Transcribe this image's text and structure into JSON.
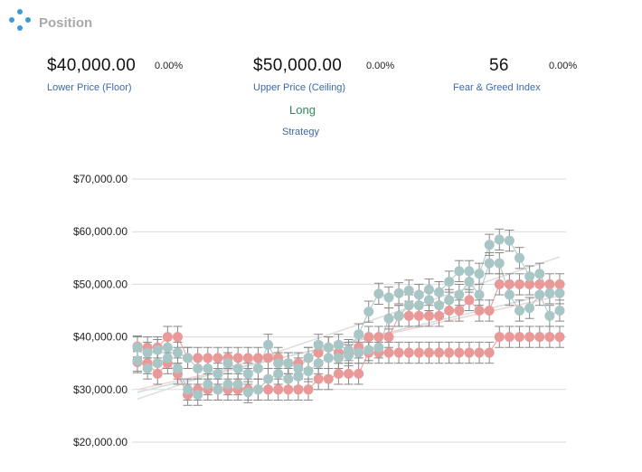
{
  "header": {
    "title": "Position",
    "icon": "network-nodes-icon",
    "accent": "#3a9bd9"
  },
  "stats": {
    "floor": {
      "value": "$40,000.00",
      "change": "0.00%",
      "label": "Lower Price (Floor)"
    },
    "ceiling": {
      "value": "$50,000.00",
      "change": "0.00%",
      "label": "Upper Price (Ceiling)"
    },
    "fear_greed": {
      "value": "56",
      "change": "0.00%",
      "label": "Fear & Greed Index"
    }
  },
  "strategy": {
    "value": "Long",
    "label": "Strategy",
    "value_color": "#2e8b57"
  },
  "chart_data": {
    "type": "scatter",
    "title": "",
    "xlabel": "",
    "ylabel": "",
    "x_label_visible": false,
    "ylim": [
      20000,
      70000
    ],
    "yticks": [
      "$20,000.00",
      "$30,000.00",
      "$40,000.00",
      "$50,000.00",
      "$60,000.00",
      "$70,000.00"
    ],
    "ytick_values": [
      20000,
      30000,
      40000,
      50000,
      60000,
      70000
    ],
    "grid": true,
    "legend": "none",
    "error_bar_color": "#888888",
    "series": [
      {
        "color": "#ea9999",
        "values": [
          [
            35200,
            38200
          ],
          [
            35000,
            38000
          ],
          [
            33000,
            38000
          ],
          [
            35000,
            40000
          ],
          [
            33000,
            40000
          ],
          [
            29000,
            36000
          ],
          [
            30000,
            36000
          ],
          [
            30000,
            36000
          ],
          [
            30000,
            36000
          ],
          [
            30000,
            36000
          ],
          [
            30000,
            36000
          ],
          [
            30000,
            36000
          ],
          [
            30000,
            36000
          ],
          [
            30000,
            36000
          ],
          [
            30000,
            36000
          ],
          [
            30000,
            35000
          ],
          [
            30000,
            35000
          ],
          [
            30000,
            36000
          ],
          [
            32000,
            37000
          ],
          [
            32000,
            38000
          ],
          [
            33000,
            37000
          ],
          [
            33000,
            37000
          ],
          [
            33000,
            38000
          ],
          [
            37000,
            40000
          ],
          [
            37000,
            40000
          ],
          [
            37000,
            40000
          ],
          [
            37000,
            44000
          ],
          [
            37000,
            44000
          ],
          [
            37000,
            44000
          ],
          [
            37000,
            44000
          ],
          [
            37000,
            44000
          ],
          [
            37000,
            45000
          ],
          [
            37000,
            45000
          ],
          [
            37000,
            47000
          ],
          [
            37000,
            45000
          ],
          [
            37000,
            45000
          ],
          [
            40000,
            50000
          ],
          [
            40000,
            50000
          ],
          [
            40000,
            50000
          ],
          [
            40000,
            50000
          ],
          [
            40000,
            50000
          ],
          [
            40000,
            50000
          ],
          [
            40000,
            50000
          ]
        ]
      },
      {
        "color": "#a9c6c6",
        "values": [
          [
            35500,
            38000
          ],
          [
            34000,
            37000
          ],
          [
            35000,
            37500
          ],
          [
            36000,
            38000
          ],
          [
            34000,
            37000
          ],
          [
            30000,
            36000
          ],
          [
            29000,
            34000
          ],
          [
            31000,
            34000
          ],
          [
            30000,
            33000
          ],
          [
            31000,
            35000
          ],
          [
            31000,
            34000
          ],
          [
            29500,
            33000
          ],
          [
            30000,
            34000
          ],
          [
            32000,
            38500
          ],
          [
            33000,
            35000
          ],
          [
            32000,
            35000
          ],
          [
            32500,
            34000
          ],
          [
            33500,
            36000
          ],
          [
            35000,
            38500
          ],
          [
            36000,
            38000
          ],
          [
            36000,
            38500
          ],
          [
            36500,
            37500
          ],
          [
            37000,
            40500
          ],
          [
            37500,
            44800
          ],
          [
            38000,
            48200
          ],
          [
            43500,
            47500
          ],
          [
            44000,
            48300
          ],
          [
            46000,
            48800
          ],
          [
            46000,
            48000
          ],
          [
            47000,
            49000
          ],
          [
            46000,
            48500
          ],
          [
            47000,
            50500
          ],
          [
            48000,
            52500
          ],
          [
            50500,
            52500
          ],
          [
            48000,
            52000
          ],
          [
            54000,
            57500
          ],
          [
            54000,
            58500
          ],
          [
            48000,
            58300
          ],
          [
            45000,
            55000
          ],
          [
            45500,
            51500
          ],
          [
            48000,
            52000
          ],
          [
            44000,
            48300
          ],
          [
            45000,
            48300
          ]
        ]
      }
    ],
    "error_bar_half_width": 2000,
    "trend_lines": [
      {
        "color": "#dddddd",
        "from": [
          0,
          28200
        ],
        "to": [
          42,
          55200
        ]
      },
      {
        "color": "#f3d1d1",
        "from": [
          0,
          30000
        ],
        "to": [
          42,
          47800
        ]
      },
      {
        "color": "#cfdede",
        "from": [
          0,
          29500
        ],
        "to": [
          42,
          48600
        ]
      }
    ]
  }
}
